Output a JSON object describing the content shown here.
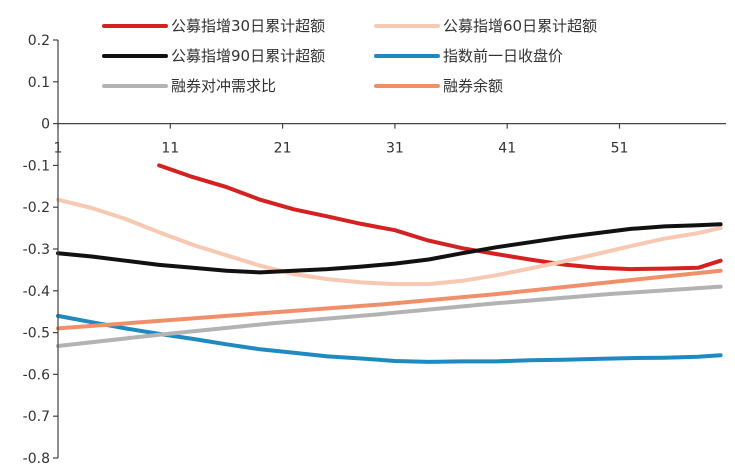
{
  "chart_data": {
    "type": "line",
    "title": "",
    "xlabel": "",
    "ylabel": "",
    "x_ticks": [
      1,
      11,
      21,
      31,
      41,
      51
    ],
    "xlim": [
      1,
      60
    ],
    "ylim": [
      -0.8,
      0.2
    ],
    "y_ticks": [
      0.2,
      0.1,
      0,
      -0.1,
      -0.2,
      -0.3,
      -0.4,
      -0.5,
      -0.6,
      -0.7,
      -0.8
    ],
    "y_tick_labels": [
      "0.2",
      "0.1",
      "0",
      "-0.1",
      "-0.2",
      "-0.3",
      "-0.4",
      "-0.5",
      "-0.6",
      "-0.7",
      "-0.8"
    ],
    "grid": false,
    "legend_position": "top",
    "series": [
      {
        "name": "公募指增30日累计超额",
        "color": "#d42121",
        "x": [
          10,
          13,
          16,
          19,
          22,
          25,
          28,
          31,
          34,
          37,
          40,
          43,
          46,
          49,
          52,
          55,
          58,
          60
        ],
        "y": [
          -0.1,
          -0.128,
          -0.152,
          -0.182,
          -0.205,
          -0.222,
          -0.24,
          -0.255,
          -0.28,
          -0.298,
          -0.312,
          -0.325,
          -0.337,
          -0.345,
          -0.348,
          -0.347,
          -0.345,
          -0.328
        ]
      },
      {
        "name": "公募指增60日累计超额",
        "color": "#f7c8b2",
        "x": [
          1,
          4,
          7,
          10,
          13,
          16,
          19,
          22,
          25,
          28,
          31,
          34,
          37,
          40,
          43,
          46,
          49,
          52,
          55,
          58,
          60
        ],
        "y": [
          -0.182,
          -0.202,
          -0.228,
          -0.26,
          -0.29,
          -0.315,
          -0.34,
          -0.36,
          -0.372,
          -0.38,
          -0.384,
          -0.384,
          -0.376,
          -0.363,
          -0.347,
          -0.33,
          -0.312,
          -0.293,
          -0.275,
          -0.262,
          -0.25
        ]
      },
      {
        "name": "公募指增90日累计超额",
        "color": "#111111",
        "x": [
          1,
          4,
          7,
          10,
          13,
          16,
          19,
          22,
          25,
          28,
          31,
          34,
          37,
          40,
          43,
          46,
          49,
          52,
          55,
          58,
          60
        ],
        "y": [
          -0.31,
          -0.318,
          -0.328,
          -0.338,
          -0.345,
          -0.352,
          -0.356,
          -0.352,
          -0.348,
          -0.342,
          -0.335,
          -0.325,
          -0.31,
          -0.296,
          -0.284,
          -0.272,
          -0.262,
          -0.252,
          -0.246,
          -0.243,
          -0.241
        ]
      },
      {
        "name": "指数前一日收盘价",
        "color": "#1f8ac0",
        "x": [
          1,
          4,
          7,
          10,
          13,
          16,
          19,
          22,
          25,
          28,
          31,
          34,
          37,
          40,
          43,
          46,
          49,
          52,
          55,
          58,
          60
        ],
        "y": [
          -0.46,
          -0.475,
          -0.49,
          -0.503,
          -0.515,
          -0.528,
          -0.54,
          -0.548,
          -0.557,
          -0.562,
          -0.568,
          -0.57,
          -0.569,
          -0.569,
          -0.566,
          -0.565,
          -0.563,
          -0.561,
          -0.56,
          -0.558,
          -0.554
        ]
      },
      {
        "name": "融券对冲需求比",
        "color": "#b3b3b3",
        "x": [
          1,
          10,
          20,
          30,
          40,
          50,
          60
        ],
        "y": [
          -0.532,
          -0.505,
          -0.478,
          -0.455,
          -0.43,
          -0.408,
          -0.39
        ]
      },
      {
        "name": "融券余额",
        "color": "#f0906a",
        "x": [
          1,
          10,
          20,
          30,
          40,
          50,
          60
        ],
        "y": [
          -0.49,
          -0.472,
          -0.452,
          -0.432,
          -0.408,
          -0.38,
          -0.352
        ]
      }
    ]
  }
}
